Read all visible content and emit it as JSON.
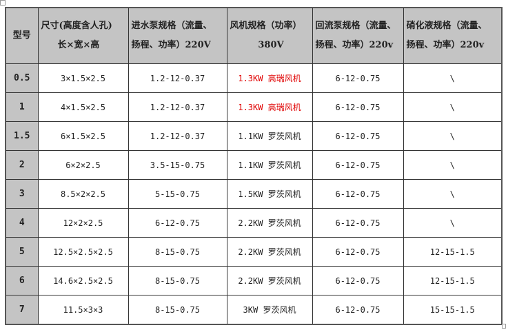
{
  "headers": [
    {
      "line1": "型号",
      "line2": ""
    },
    {
      "line1": "尺寸(高度含人孔)",
      "line2": "长×宽×高"
    },
    {
      "line1": "进水泵规格（流量、",
      "line2": "扬程、功率）220V"
    },
    {
      "line1": "风机规格（功率）",
      "line2": "380V"
    },
    {
      "line1": "回流泵规格（流量、",
      "line2": "扬程、功率）220v"
    },
    {
      "line1": "硝化液规格（流量、",
      "line2": "扬程、功率）220v"
    }
  ],
  "highlight_color": "#e00000",
  "rows": [
    {
      "model": "0.5",
      "size": "3×1.5×2.5",
      "inlet": "1.2-12-0.37",
      "fan": "1.3KW 高瑞风机",
      "fan_red": true,
      "reflux": "6-12-0.75",
      "nitro": "\\"
    },
    {
      "model": "1",
      "size": "4×1.5×2.5",
      "inlet": "1.2-12-0.37",
      "fan": "1.3KW 高瑞风机",
      "fan_red": true,
      "reflux": "6-12-0.75",
      "nitro": "\\"
    },
    {
      "model": "1.5",
      "size": "6×1.5×2.5",
      "inlet": "1.2-12-0.37",
      "fan": "1.1KW 罗茨风机",
      "fan_red": false,
      "reflux": "6-12-0.75",
      "nitro": "\\"
    },
    {
      "model": "2",
      "size": "6×2×2.5",
      "inlet": "3.5-15-0.75",
      "fan": "1.1KW 罗茨风机",
      "fan_red": false,
      "reflux": "6-12-0.75",
      "nitro": "\\"
    },
    {
      "model": "3",
      "size": "8.5×2×2.5",
      "inlet": "5-15-0.75",
      "fan": "1.5KW 罗茨风机",
      "fan_red": false,
      "reflux": "6-12-0.75",
      "nitro": "\\"
    },
    {
      "model": "4",
      "size": "12×2×2.5",
      "inlet": "6-12-0.75",
      "fan": "2.2KW 罗茨风机",
      "fan_red": false,
      "reflux": "6-12-0.75",
      "nitro": "\\"
    },
    {
      "model": "5",
      "size": "12.5×2.5×2.5",
      "inlet": "8-15-0.75",
      "fan": "2.2KW 罗茨风机",
      "fan_red": false,
      "reflux": "6-12-0.75",
      "nitro": "12-15-1.5"
    },
    {
      "model": "6",
      "size": "14.6×2.5×2.5",
      "inlet": "8-15-0.75",
      "fan": "2.2KW 罗茨风机",
      "fan_red": false,
      "reflux": "6-12-0.75",
      "nitro": "12-15-1.5"
    },
    {
      "model": "7",
      "size": "11.5×3×3",
      "inlet": "8-15-0.75",
      "fan": "3KW 罗茨风机",
      "fan_red": false,
      "reflux": "6-12-0.75",
      "nitro": "15-15-1.5"
    }
  ]
}
